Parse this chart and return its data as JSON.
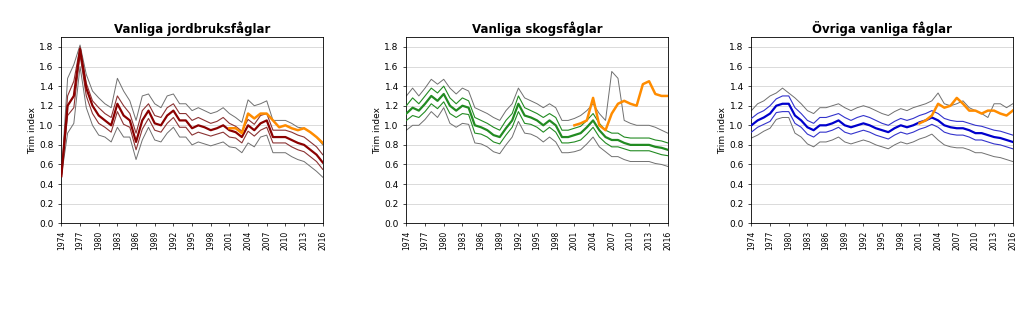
{
  "ylabel": "Trim index",
  "years": [
    1974,
    1975,
    1976,
    1977,
    1978,
    1979,
    1980,
    1981,
    1982,
    1983,
    1984,
    1985,
    1986,
    1987,
    1988,
    1989,
    1990,
    1991,
    1992,
    1993,
    1994,
    1995,
    1996,
    1997,
    1998,
    1999,
    2000,
    2001,
    2002,
    2003,
    2004,
    2005,
    2006,
    2007,
    2008,
    2009,
    2010,
    2011,
    2012,
    2013,
    2014,
    2015,
    2016
  ],
  "xtick_years": [
    1974,
    1977,
    1980,
    1983,
    1986,
    1989,
    1992,
    1995,
    1998,
    2001,
    2004,
    2007,
    2010,
    2013,
    2016
  ],
  "ylim": [
    0.0,
    1.9
  ],
  "yticks": [
    0.0,
    0.2,
    0.4,
    0.6,
    0.8,
    1.0,
    1.2,
    1.4,
    1.6,
    1.8
  ],
  "background_color": "#ffffff",
  "grid_color": "#aaaaaa",
  "outer_ci_color": "#808080",
  "panel1": {
    "title": "Vanliga jordbruksfåglar",
    "color_main": "#8B0000",
    "color_highlight": "#FF8C00",
    "color_inner_ci": "#8B3333",
    "color_outer_ci": "#707070",
    "series_main": [
      0.48,
      1.2,
      1.3,
      1.78,
      1.38,
      1.2,
      1.1,
      1.05,
      1.0,
      1.22,
      1.1,
      1.05,
      0.83,
      1.05,
      1.15,
      1.02,
      1.0,
      1.1,
      1.15,
      1.05,
      1.05,
      0.97,
      1.0,
      0.98,
      0.95,
      0.97,
      1.0,
      0.95,
      0.93,
      0.88,
      1.0,
      0.95,
      1.02,
      1.05,
      0.88,
      0.88,
      0.88,
      0.85,
      0.82,
      0.8,
      0.75,
      0.7,
      0.62
    ],
    "series_inner_up": [
      0.48,
      1.3,
      1.45,
      1.8,
      1.43,
      1.25,
      1.18,
      1.12,
      1.08,
      1.3,
      1.2,
      1.12,
      0.92,
      1.15,
      1.22,
      1.1,
      1.08,
      1.18,
      1.22,
      1.12,
      1.12,
      1.05,
      1.08,
      1.05,
      1.02,
      1.04,
      1.08,
      1.02,
      0.99,
      0.94,
      1.06,
      1.01,
      1.1,
      1.12,
      0.95,
      0.95,
      0.95,
      0.93,
      0.9,
      0.88,
      0.83,
      0.78,
      0.7
    ],
    "series_inner_dn": [
      0.48,
      1.1,
      1.18,
      1.72,
      1.3,
      1.12,
      1.02,
      0.98,
      0.93,
      1.14,
      1.01,
      0.98,
      0.75,
      0.96,
      1.07,
      0.95,
      0.93,
      1.02,
      1.08,
      0.98,
      0.98,
      0.9,
      0.93,
      0.91,
      0.89,
      0.91,
      0.93,
      0.88,
      0.87,
      0.82,
      0.94,
      0.89,
      0.95,
      0.98,
      0.82,
      0.82,
      0.82,
      0.78,
      0.75,
      0.73,
      0.68,
      0.63,
      0.55
    ],
    "series_outer_up": [
      0.48,
      1.48,
      1.62,
      1.82,
      1.52,
      1.35,
      1.28,
      1.22,
      1.18,
      1.48,
      1.35,
      1.25,
      1.05,
      1.3,
      1.32,
      1.22,
      1.18,
      1.3,
      1.32,
      1.22,
      1.22,
      1.15,
      1.18,
      1.15,
      1.12,
      1.14,
      1.18,
      1.12,
      1.08,
      1.03,
      1.26,
      1.2,
      1.22,
      1.25,
      1.05,
      1.05,
      1.05,
      1.02,
      0.98,
      0.97,
      0.93,
      0.88,
      0.8
    ],
    "series_outer_dn": [
      0.48,
      0.92,
      1.02,
      1.6,
      1.18,
      1.0,
      0.9,
      0.88,
      0.83,
      0.98,
      0.88,
      0.88,
      0.65,
      0.85,
      0.98,
      0.85,
      0.83,
      0.92,
      0.98,
      0.88,
      0.88,
      0.8,
      0.83,
      0.81,
      0.79,
      0.81,
      0.83,
      0.78,
      0.77,
      0.72,
      0.82,
      0.78,
      0.88,
      0.9,
      0.72,
      0.72,
      0.72,
      0.68,
      0.65,
      0.63,
      0.58,
      0.53,
      0.47
    ],
    "series_highlight": [
      null,
      null,
      null,
      null,
      null,
      null,
      null,
      null,
      null,
      null,
      null,
      null,
      null,
      null,
      null,
      null,
      null,
      null,
      null,
      null,
      null,
      null,
      null,
      null,
      null,
      null,
      null,
      0.97,
      0.97,
      0.92,
      1.12,
      1.07,
      1.12,
      1.12,
      1.05,
      0.98,
      1.0,
      0.97,
      0.95,
      0.97,
      0.93,
      0.88,
      0.82
    ]
  },
  "panel2": {
    "title": "Vanliga skogsfåglar",
    "color_main": "#228B22",
    "color_highlight": "#FF8C00",
    "color_inner_ci": "#228B22",
    "color_outer_ci": "#707070",
    "series_main": [
      1.12,
      1.18,
      1.15,
      1.22,
      1.3,
      1.25,
      1.32,
      1.2,
      1.15,
      1.2,
      1.18,
      1.0,
      0.98,
      0.95,
      0.9,
      0.88,
      0.97,
      1.05,
      1.22,
      1.1,
      1.08,
      1.05,
      1.0,
      1.05,
      1.0,
      0.88,
      0.88,
      0.9,
      0.92,
      0.98,
      1.05,
      0.95,
      0.88,
      0.85,
      0.85,
      0.82,
      0.8,
      0.8,
      0.8,
      0.8,
      0.78,
      0.77,
      0.75
    ],
    "series_inner_up": [
      1.2,
      1.28,
      1.22,
      1.3,
      1.38,
      1.33,
      1.4,
      1.28,
      1.22,
      1.28,
      1.25,
      1.08,
      1.05,
      1.02,
      0.98,
      0.95,
      1.05,
      1.12,
      1.3,
      1.18,
      1.15,
      1.12,
      1.08,
      1.12,
      1.08,
      0.95,
      0.95,
      0.97,
      0.99,
      1.05,
      1.12,
      1.02,
      0.95,
      0.92,
      0.92,
      0.88,
      0.87,
      0.87,
      0.87,
      0.87,
      0.85,
      0.84,
      0.82
    ],
    "series_inner_dn": [
      1.05,
      1.1,
      1.08,
      1.14,
      1.22,
      1.17,
      1.24,
      1.12,
      1.08,
      1.12,
      1.11,
      0.92,
      0.91,
      0.88,
      0.83,
      0.81,
      0.9,
      0.98,
      1.14,
      1.02,
      1.01,
      0.98,
      0.93,
      0.98,
      0.93,
      0.82,
      0.82,
      0.83,
      0.85,
      0.91,
      0.98,
      0.88,
      0.82,
      0.78,
      0.78,
      0.76,
      0.74,
      0.74,
      0.74,
      0.74,
      0.72,
      0.7,
      0.69
    ],
    "series_outer_up": [
      1.3,
      1.38,
      1.3,
      1.38,
      1.47,
      1.42,
      1.47,
      1.38,
      1.32,
      1.38,
      1.35,
      1.18,
      1.15,
      1.12,
      1.08,
      1.05,
      1.15,
      1.22,
      1.38,
      1.28,
      1.25,
      1.22,
      1.18,
      1.22,
      1.18,
      1.05,
      1.05,
      1.07,
      1.1,
      1.15,
      1.22,
      1.12,
      1.05,
      1.55,
      1.48,
      1.05,
      1.02,
      1.0,
      1.0,
      1.0,
      0.98,
      0.95,
      0.92
    ],
    "series_outer_dn": [
      0.95,
      1.0,
      1.0,
      1.06,
      1.14,
      1.08,
      1.18,
      1.02,
      0.98,
      1.02,
      1.01,
      0.82,
      0.81,
      0.78,
      0.73,
      0.71,
      0.8,
      0.88,
      1.04,
      0.92,
      0.91,
      0.88,
      0.83,
      0.88,
      0.83,
      0.72,
      0.72,
      0.73,
      0.75,
      0.81,
      0.88,
      0.78,
      0.73,
      0.68,
      0.68,
      0.65,
      0.63,
      0.63,
      0.63,
      0.63,
      0.61,
      0.6,
      0.58
    ],
    "series_highlight": [
      null,
      null,
      null,
      null,
      null,
      null,
      null,
      null,
      null,
      null,
      null,
      null,
      null,
      null,
      null,
      null,
      null,
      null,
      null,
      null,
      null,
      null,
      null,
      null,
      null,
      null,
      null,
      1.0,
      1.02,
      1.05,
      1.28,
      1.0,
      0.95,
      1.12,
      1.22,
      1.25,
      1.22,
      1.2,
      1.42,
      1.45,
      1.32,
      1.3,
      1.3
    ]
  },
  "panel3": {
    "title": "Övriga vanliga fåglar",
    "color_main": "#0000CD",
    "color_highlight": "#FF8C00",
    "color_inner_ci": "#3333CC",
    "color_outer_ci": "#707070",
    "series_main": [
      1.0,
      1.05,
      1.08,
      1.12,
      1.2,
      1.22,
      1.22,
      1.1,
      1.05,
      0.98,
      0.95,
      1.0,
      1.0,
      1.02,
      1.05,
      1.0,
      0.98,
      1.0,
      1.02,
      1.0,
      0.97,
      0.95,
      0.93,
      0.97,
      1.0,
      0.98,
      1.0,
      1.03,
      1.05,
      1.08,
      1.05,
      1.0,
      0.98,
      0.97,
      0.97,
      0.95,
      0.92,
      0.92,
      0.9,
      0.88,
      0.87,
      0.85,
      0.83
    ],
    "series_inner_up": [
      1.07,
      1.12,
      1.15,
      1.2,
      1.27,
      1.3,
      1.3,
      1.18,
      1.12,
      1.05,
      1.02,
      1.08,
      1.08,
      1.1,
      1.12,
      1.08,
      1.05,
      1.08,
      1.1,
      1.08,
      1.05,
      1.02,
      1.0,
      1.04,
      1.07,
      1.05,
      1.07,
      1.1,
      1.12,
      1.15,
      1.12,
      1.07,
      1.05,
      1.04,
      1.04,
      1.02,
      1.0,
      0.99,
      0.97,
      0.95,
      0.94,
      0.92,
      0.9
    ],
    "series_inner_dn": [
      0.93,
      0.98,
      1.01,
      1.04,
      1.13,
      1.14,
      1.14,
      1.02,
      0.98,
      0.91,
      0.88,
      0.93,
      0.93,
      0.95,
      0.98,
      0.93,
      0.91,
      0.93,
      0.95,
      0.93,
      0.9,
      0.88,
      0.86,
      0.9,
      0.93,
      0.91,
      0.93,
      0.96,
      0.98,
      1.01,
      0.98,
      0.93,
      0.91,
      0.9,
      0.9,
      0.88,
      0.85,
      0.85,
      0.83,
      0.81,
      0.8,
      0.78,
      0.76
    ],
    "series_outer_up": [
      1.15,
      1.22,
      1.25,
      1.3,
      1.33,
      1.38,
      1.33,
      1.28,
      1.22,
      1.15,
      1.12,
      1.18,
      1.18,
      1.2,
      1.22,
      1.18,
      1.15,
      1.18,
      1.2,
      1.18,
      1.15,
      1.12,
      1.1,
      1.14,
      1.17,
      1.15,
      1.18,
      1.2,
      1.22,
      1.25,
      1.33,
      1.22,
      1.2,
      1.22,
      1.25,
      1.18,
      1.15,
      1.12,
      1.08,
      1.22,
      1.22,
      1.18,
      1.22
    ],
    "series_outer_dn": [
      0.87,
      0.9,
      0.94,
      0.97,
      1.06,
      1.08,
      1.08,
      0.92,
      0.88,
      0.81,
      0.78,
      0.83,
      0.83,
      0.85,
      0.88,
      0.83,
      0.81,
      0.83,
      0.85,
      0.83,
      0.8,
      0.78,
      0.76,
      0.8,
      0.83,
      0.81,
      0.83,
      0.86,
      0.88,
      0.91,
      0.85,
      0.8,
      0.78,
      0.77,
      0.77,
      0.75,
      0.72,
      0.72,
      0.7,
      0.68,
      0.67,
      0.65,
      0.63
    ],
    "series_highlight": [
      null,
      null,
      null,
      null,
      null,
      null,
      null,
      null,
      null,
      null,
      null,
      null,
      null,
      null,
      null,
      null,
      null,
      null,
      null,
      null,
      null,
      null,
      null,
      null,
      null,
      null,
      null,
      1.02,
      1.05,
      1.1,
      1.22,
      1.18,
      1.2,
      1.28,
      1.22,
      1.15,
      1.15,
      1.12,
      1.15,
      1.15,
      1.12,
      1.1,
      1.15
    ]
  }
}
